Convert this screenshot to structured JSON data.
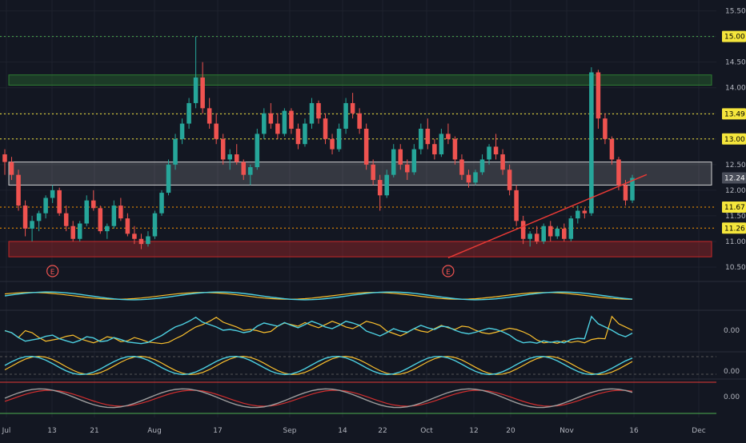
{
  "chart_data": {
    "type": "candlestick",
    "price_axis": {
      "ticks": [
        "15.50",
        "15.00",
        "14.50",
        "14.00",
        "13.50",
        "13.00",
        "12.50",
        "12.00",
        "11.50",
        "11.00",
        "10.50"
      ],
      "tick_values": [
        15.5,
        15.0,
        14.5,
        14.0,
        13.5,
        13.0,
        12.5,
        12.0,
        11.5,
        11.0,
        10.5
      ],
      "range": [
        10.25,
        15.65
      ]
    },
    "time_axis": {
      "labels": [
        "Jul",
        "13",
        "21",
        "Aug",
        "17",
        "Sep",
        "14",
        "22",
        "Oct",
        "12",
        "20",
        "Nov",
        "16",
        "Dec"
      ]
    },
    "price_badges": [
      {
        "label": "15.00",
        "value": 15.0,
        "color": "#f5e63c"
      },
      {
        "label": "13.49",
        "value": 13.49,
        "color": "#f5e63c"
      },
      {
        "label": "13.00",
        "value": 13.0,
        "color": "#f5e63c"
      },
      {
        "label": "12.24",
        "value": 12.24,
        "color": "#4a4e5a"
      },
      {
        "label": "11.67",
        "value": 11.67,
        "color": "#f5e63c"
      },
      {
        "label": "11.26",
        "value": 11.26,
        "color": "#f5e63c"
      }
    ],
    "reference_lines": [
      {
        "value": 15.0,
        "color": "#4caf50",
        "style": "dotted"
      },
      {
        "value": 13.49,
        "color": "#f5e63c",
        "style": "dotted"
      },
      {
        "value": 13.0,
        "color": "#f5e63c",
        "style": "dotted"
      },
      {
        "value": 11.67,
        "color": "#ff9800",
        "style": "dotted"
      },
      {
        "value": 11.26,
        "color": "#ff9800",
        "style": "dotted"
      }
    ],
    "zones": [
      {
        "low": 14.05,
        "high": 14.25,
        "color": "#2e7d32"
      },
      {
        "low": 12.1,
        "high": 12.55,
        "color": "#d0d0d0"
      },
      {
        "low": 10.7,
        "high": 11.0,
        "color": "#c62828"
      }
    ],
    "trendline": {
      "from": [
        -27,
        10.68
      ],
      "to": [
        -2,
        12.15
      ],
      "color": "#e53935"
    },
    "earnings_markers": [
      {
        "label": "E",
        "bar": -85
      },
      {
        "label": "E",
        "bar": -27
      }
    ],
    "candles_ohlc": [
      [
        12.7,
        12.8,
        12.3,
        12.55
      ],
      [
        12.55,
        12.65,
        12.2,
        12.3
      ],
      [
        12.3,
        12.4,
        11.6,
        11.7
      ],
      [
        11.7,
        11.8,
        11.1,
        11.25
      ],
      [
        11.25,
        11.5,
        11.0,
        11.4
      ],
      [
        11.4,
        11.6,
        11.2,
        11.55
      ],
      [
        11.55,
        11.9,
        11.45,
        11.85
      ],
      [
        11.85,
        12.1,
        11.75,
        12.0
      ],
      [
        12.0,
        12.05,
        11.5,
        11.55
      ],
      [
        11.55,
        11.7,
        11.2,
        11.3
      ],
      [
        11.3,
        11.4,
        11.0,
        11.05
      ],
      [
        11.05,
        11.4,
        11.0,
        11.35
      ],
      [
        11.35,
        11.9,
        11.3,
        11.8
      ],
      [
        11.8,
        12.0,
        11.6,
        11.65
      ],
      [
        11.65,
        11.7,
        11.15,
        11.2
      ],
      [
        11.2,
        11.35,
        11.05,
        11.3
      ],
      [
        11.3,
        11.8,
        11.25,
        11.7
      ],
      [
        11.7,
        11.85,
        11.4,
        11.45
      ],
      [
        11.45,
        11.55,
        11.1,
        11.15
      ],
      [
        11.15,
        11.3,
        10.95,
        11.05
      ],
      [
        11.05,
        11.15,
        10.85,
        10.95
      ],
      [
        10.95,
        11.2,
        10.9,
        11.1
      ],
      [
        11.1,
        11.6,
        11.05,
        11.55
      ],
      [
        11.55,
        12.0,
        11.5,
        11.95
      ],
      [
        11.95,
        12.6,
        11.9,
        12.5
      ],
      [
        12.5,
        13.1,
        12.4,
        13.0
      ],
      [
        13.0,
        13.4,
        12.9,
        13.3
      ],
      [
        13.3,
        13.8,
        13.2,
        13.7
      ],
      [
        13.7,
        15.0,
        13.6,
        14.2
      ],
      [
        14.2,
        14.5,
        13.5,
        13.6
      ],
      [
        13.6,
        13.8,
        13.2,
        13.3
      ],
      [
        13.3,
        13.5,
        12.9,
        13.0
      ],
      [
        13.0,
        13.1,
        12.5,
        12.6
      ],
      [
        12.6,
        12.8,
        12.4,
        12.7
      ],
      [
        12.7,
        12.9,
        12.5,
        12.55
      ],
      [
        12.55,
        12.6,
        12.2,
        12.3
      ],
      [
        12.3,
        12.5,
        12.1,
        12.45
      ],
      [
        12.45,
        13.2,
        12.4,
        13.1
      ],
      [
        13.1,
        13.6,
        13.0,
        13.5
      ],
      [
        13.5,
        13.7,
        13.2,
        13.3
      ],
      [
        13.3,
        13.5,
        13.0,
        13.1
      ],
      [
        13.1,
        13.6,
        13.05,
        13.55
      ],
      [
        13.55,
        13.6,
        13.1,
        13.2
      ],
      [
        13.2,
        13.3,
        12.8,
        12.9
      ],
      [
        12.9,
        13.4,
        12.85,
        13.3
      ],
      [
        13.3,
        13.8,
        13.2,
        13.7
      ],
      [
        13.7,
        13.75,
        13.3,
        13.4
      ],
      [
        13.4,
        13.5,
        12.9,
        13.0
      ],
      [
        13.0,
        13.1,
        12.7,
        12.8
      ],
      [
        12.8,
        13.3,
        12.75,
        13.2
      ],
      [
        13.2,
        13.8,
        13.1,
        13.7
      ],
      [
        13.7,
        13.9,
        13.4,
        13.5
      ],
      [
        13.5,
        13.6,
        13.1,
        13.2
      ],
      [
        13.2,
        13.3,
        12.4,
        12.5
      ],
      [
        12.5,
        12.6,
        12.1,
        12.2
      ],
      [
        12.2,
        12.3,
        11.6,
        11.9
      ],
      [
        11.9,
        12.4,
        11.85,
        12.3
      ],
      [
        12.3,
        12.9,
        12.25,
        12.8
      ],
      [
        12.8,
        12.9,
        12.4,
        12.5
      ],
      [
        12.5,
        12.6,
        12.2,
        12.35
      ],
      [
        12.35,
        12.9,
        12.3,
        12.8
      ],
      [
        12.8,
        13.3,
        12.7,
        13.2
      ],
      [
        13.2,
        13.4,
        12.8,
        12.9
      ],
      [
        12.9,
        13.0,
        12.6,
        12.7
      ],
      [
        12.7,
        13.2,
        12.65,
        13.1
      ],
      [
        13.1,
        13.3,
        12.9,
        13.0
      ],
      [
        13.0,
        13.05,
        12.5,
        12.6
      ],
      [
        12.6,
        12.7,
        12.2,
        12.3
      ],
      [
        12.3,
        12.4,
        12.05,
        12.15
      ],
      [
        12.15,
        12.4,
        12.1,
        12.35
      ],
      [
        12.35,
        12.7,
        12.3,
        12.6
      ],
      [
        12.6,
        12.9,
        12.5,
        12.85
      ],
      [
        12.85,
        13.1,
        12.6,
        12.7
      ],
      [
        12.7,
        12.8,
        12.3,
        12.4
      ],
      [
        12.4,
        12.5,
        11.9,
        12.0
      ],
      [
        12.0,
        12.1,
        11.3,
        11.4
      ],
      [
        11.4,
        11.5,
        10.95,
        11.05
      ],
      [
        11.05,
        11.2,
        10.9,
        11.15
      ],
      [
        11.15,
        11.3,
        10.95,
        11.0
      ],
      [
        11.0,
        11.35,
        10.95,
        11.3
      ],
      [
        11.3,
        11.4,
        11.0,
        11.1
      ],
      [
        11.1,
        11.3,
        11.05,
        11.25
      ],
      [
        11.25,
        11.35,
        11.0,
        11.05
      ],
      [
        11.05,
        11.5,
        11.0,
        11.45
      ],
      [
        11.45,
        11.7,
        11.35,
        11.6
      ],
      [
        11.6,
        11.65,
        11.45,
        11.55
      ],
      [
        11.55,
        14.4,
        11.5,
        14.3
      ],
      [
        14.3,
        14.35,
        13.2,
        13.4
      ],
      [
        13.4,
        13.5,
        12.9,
        13.0
      ],
      [
        13.0,
        13.05,
        12.5,
        12.6
      ],
      [
        12.6,
        12.65,
        12.0,
        12.1
      ],
      [
        12.1,
        12.2,
        11.7,
        11.8
      ],
      [
        11.8,
        12.3,
        11.75,
        12.24
      ]
    ]
  }
}
